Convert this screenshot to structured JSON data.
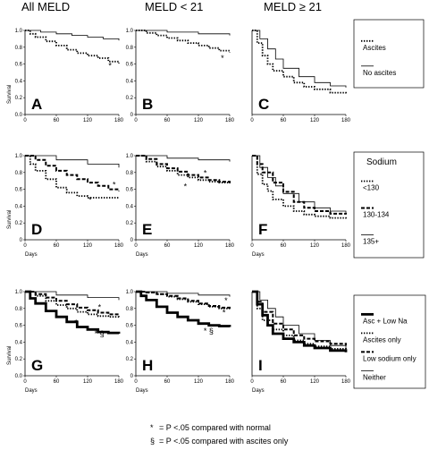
{
  "column_headers": [
    "All MELD",
    "MELD < 21",
    "MELD ≥ 21"
  ],
  "footnotes": [
    {
      "symbol": "*",
      "text": "= P <.05 compared with normal"
    },
    {
      "symbol": "§",
      "text": "= P <.05 compared with ascites only"
    }
  ],
  "legends": [
    {
      "title": "",
      "entries": [
        {
          "label": "Ascites",
          "style": "dotted"
        },
        {
          "label": "No ascites",
          "style": "thin"
        }
      ]
    },
    {
      "title": "Sodium",
      "entries": [
        {
          "label": "<130",
          "style": "dotted"
        },
        {
          "label": "130-134",
          "style": "dashed"
        },
        {
          "label": "135+",
          "style": "thin"
        }
      ]
    },
    {
      "title": "",
      "entries": [
        {
          "label": "Asc + Low Na",
          "style": "thick"
        },
        {
          "label": "Ascites only",
          "style": "dotted"
        },
        {
          "label": "Low sodium only",
          "style": "dashed"
        },
        {
          "label": "Neither",
          "style": "thin"
        }
      ]
    }
  ],
  "chart_data": [
    {
      "panel": "A",
      "type": "line",
      "xlabel": "",
      "ylabel": "Survival",
      "xlim": [
        0,
        180
      ],
      "ylim": [
        0,
        1
      ],
      "xticks": [
        0,
        60,
        120,
        180
      ],
      "yticks": [
        "0.0",
        "0.2",
        "0.4",
        "0.6",
        "0.8",
        "1.0"
      ],
      "annotations": [
        {
          "text": "*",
          "x": 160,
          "y": 0.55
        }
      ],
      "series": [
        {
          "name": "Ascites",
          "style": "dotted",
          "x": [
            0,
            10,
            20,
            40,
            60,
            80,
            100,
            120,
            140,
            160,
            180
          ],
          "y": [
            1.0,
            0.96,
            0.92,
            0.87,
            0.82,
            0.77,
            0.73,
            0.7,
            0.67,
            0.63,
            0.61
          ]
        },
        {
          "name": "No ascites",
          "style": "thin",
          "x": [
            0,
            30,
            60,
            90,
            120,
            150,
            180
          ],
          "y": [
            1.0,
            0.98,
            0.96,
            0.94,
            0.92,
            0.9,
            0.88
          ]
        }
      ]
    },
    {
      "panel": "B",
      "type": "line",
      "xlabel": "",
      "ylabel": "",
      "xlim": [
        0,
        180
      ],
      "ylim": [
        0,
        1
      ],
      "xticks": [
        0,
        60,
        120,
        180
      ],
      "yticks": [
        "0",
        "0.2",
        "0.4",
        "0.6",
        "0.8",
        "1.0"
      ],
      "annotations": [
        {
          "text": "*",
          "x": 163,
          "y": 0.64
        }
      ],
      "series": [
        {
          "name": "Ascites",
          "style": "dotted",
          "x": [
            0,
            20,
            40,
            60,
            80,
            100,
            120,
            140,
            160,
            180
          ],
          "y": [
            1.0,
            0.97,
            0.94,
            0.91,
            0.88,
            0.85,
            0.82,
            0.79,
            0.76,
            0.74
          ]
        },
        {
          "name": "No ascites",
          "style": "thin",
          "x": [
            0,
            60,
            120,
            180
          ],
          "y": [
            1.0,
            0.98,
            0.96,
            0.94
          ]
        }
      ]
    },
    {
      "panel": "C",
      "type": "line",
      "xlabel": "",
      "ylabel": "",
      "xlim": [
        0,
        180
      ],
      "ylim": [
        0,
        1
      ],
      "xticks": [
        0,
        60,
        120,
        180
      ],
      "yticks": [],
      "annotations": [],
      "series": [
        {
          "name": "Ascites",
          "style": "dotted",
          "x": [
            0,
            10,
            20,
            30,
            40,
            60,
            80,
            100,
            120,
            150,
            180
          ],
          "y": [
            1.0,
            0.85,
            0.7,
            0.6,
            0.52,
            0.45,
            0.38,
            0.33,
            0.3,
            0.26,
            0.25
          ]
        },
        {
          "name": "No ascites",
          "style": "thin",
          "x": [
            0,
            15,
            30,
            45,
            60,
            90,
            120,
            150,
            180
          ],
          "y": [
            1.0,
            0.9,
            0.78,
            0.66,
            0.55,
            0.45,
            0.38,
            0.34,
            0.32
          ]
        }
      ]
    },
    {
      "panel": "D",
      "type": "line",
      "xlabel": "Days",
      "ylabel": "Survival",
      "xlim": [
        0,
        180
      ],
      "ylim": [
        0,
        1
      ],
      "xticks": [
        0,
        60,
        120,
        180
      ],
      "yticks": [
        "0",
        "0.2",
        "0.4",
        "0.6",
        "0.8",
        "1.0"
      ],
      "annotations": [
        {
          "text": "*",
          "x": 168,
          "y": 0.62
        },
        {
          "text": "*",
          "x": 122,
          "y": 0.44
        }
      ],
      "series": [
        {
          "name": "<130",
          "style": "dotted",
          "x": [
            0,
            10,
            20,
            40,
            60,
            80,
            100,
            120,
            180
          ],
          "y": [
            1.0,
            0.9,
            0.82,
            0.72,
            0.62,
            0.56,
            0.52,
            0.5,
            0.5
          ]
        },
        {
          "name": "130-134",
          "style": "dashed",
          "x": [
            0,
            20,
            40,
            60,
            80,
            100,
            120,
            140,
            160,
            180
          ],
          "y": [
            1.0,
            0.95,
            0.88,
            0.82,
            0.77,
            0.72,
            0.68,
            0.64,
            0.6,
            0.58
          ]
        },
        {
          "name": "135+",
          "style": "thin",
          "x": [
            0,
            60,
            120,
            180
          ],
          "y": [
            1.0,
            0.95,
            0.9,
            0.86
          ]
        }
      ]
    },
    {
      "panel": "E",
      "type": "line",
      "xlabel": "Days",
      "ylabel": "",
      "xlim": [
        0,
        180
      ],
      "ylim": [
        0,
        1
      ],
      "xticks": [
        0,
        60,
        120,
        180
      ],
      "yticks": [
        "0",
        "0.2",
        "0.4",
        "0.6",
        "0.8",
        "1.0"
      ],
      "annotations": [
        {
          "text": "*",
          "x": 130,
          "y": 0.76
        },
        {
          "text": "*",
          "x": 92,
          "y": 0.6
        }
      ],
      "series": [
        {
          "name": "<130",
          "style": "dotted",
          "x": [
            0,
            20,
            40,
            60,
            80,
            100,
            120,
            140,
            160,
            180
          ],
          "y": [
            1.0,
            0.93,
            0.87,
            0.82,
            0.77,
            0.74,
            0.71,
            0.69,
            0.68,
            0.67
          ]
        },
        {
          "name": "130-134",
          "style": "dashed",
          "x": [
            0,
            20,
            40,
            60,
            80,
            100,
            120,
            140,
            160,
            180
          ],
          "y": [
            1.0,
            0.96,
            0.9,
            0.85,
            0.81,
            0.77,
            0.74,
            0.71,
            0.69,
            0.68
          ]
        },
        {
          "name": "135+",
          "style": "thin",
          "x": [
            0,
            60,
            120,
            180
          ],
          "y": [
            1.0,
            0.97,
            0.95,
            0.93
          ]
        }
      ]
    },
    {
      "panel": "F",
      "type": "line",
      "xlabel": "Days",
      "ylabel": "",
      "xlim": [
        0,
        180
      ],
      "ylim": [
        0,
        1
      ],
      "xticks": [
        0,
        60,
        120,
        180
      ],
      "yticks": [],
      "annotations": [],
      "series": [
        {
          "name": "<130",
          "style": "dotted",
          "x": [
            0,
            10,
            20,
            30,
            40,
            60,
            80,
            100,
            120,
            150,
            180
          ],
          "y": [
            1.0,
            0.78,
            0.66,
            0.58,
            0.48,
            0.4,
            0.34,
            0.3,
            0.28,
            0.26,
            0.25
          ]
        },
        {
          "name": "130-134",
          "style": "dashed",
          "x": [
            0,
            10,
            20,
            40,
            60,
            80,
            100,
            120,
            150,
            180
          ],
          "y": [
            1.0,
            0.9,
            0.8,
            0.68,
            0.57,
            0.45,
            0.38,
            0.34,
            0.31,
            0.3
          ]
        },
        {
          "name": "135+",
          "style": "thin",
          "x": [
            0,
            15,
            30,
            45,
            60,
            90,
            120,
            150,
            180
          ],
          "y": [
            1.0,
            0.86,
            0.74,
            0.64,
            0.55,
            0.45,
            0.38,
            0.34,
            0.32
          ]
        }
      ]
    },
    {
      "panel": "G",
      "type": "line",
      "xlabel": "Days",
      "ylabel": "Survival",
      "xlim": [
        0,
        180
      ],
      "ylim": [
        0,
        1
      ],
      "xticks": [
        0,
        60,
        120,
        180
      ],
      "yticks": [
        "0.0",
        "0.2",
        "0.4",
        "0.6",
        "0.8",
        "1.0"
      ],
      "annotations": [
        {
          "text": "*",
          "x": 140,
          "y": 0.78
        },
        {
          "text": "*",
          "x": 95,
          "y": 0.6
        },
        {
          "text": "* §",
          "x": 133,
          "y": 0.47
        }
      ],
      "series": [
        {
          "name": "Asc + Low Na",
          "style": "thick",
          "x": [
            0,
            10,
            20,
            40,
            60,
            80,
            100,
            120,
            140,
            160,
            180
          ],
          "y": [
            1.0,
            0.92,
            0.86,
            0.77,
            0.7,
            0.64,
            0.58,
            0.55,
            0.52,
            0.51,
            0.5
          ]
        },
        {
          "name": "Ascites only",
          "style": "dotted",
          "x": [
            0,
            20,
            40,
            60,
            80,
            100,
            120,
            140,
            160,
            180
          ],
          "y": [
            1.0,
            0.95,
            0.89,
            0.84,
            0.8,
            0.76,
            0.73,
            0.71,
            0.7,
            0.69
          ]
        },
        {
          "name": "Low sodium only",
          "style": "dashed",
          "x": [
            0,
            20,
            40,
            60,
            80,
            100,
            120,
            140,
            160,
            180
          ],
          "y": [
            1.0,
            0.97,
            0.93,
            0.89,
            0.85,
            0.81,
            0.78,
            0.75,
            0.73,
            0.72
          ]
        },
        {
          "name": "Neither",
          "style": "thin",
          "x": [
            0,
            60,
            120,
            180
          ],
          "y": [
            1.0,
            0.96,
            0.93,
            0.9
          ]
        }
      ]
    },
    {
      "panel": "H",
      "type": "line",
      "xlabel": "Days",
      "ylabel": "",
      "xlim": [
        0,
        180
      ],
      "ylim": [
        0,
        1
      ],
      "xticks": [
        0,
        60,
        120,
        180
      ],
      "yticks": [
        "0",
        "0.2",
        "0.4",
        "0.6",
        "0.8",
        "1.0"
      ],
      "annotations": [
        {
          "text": "*",
          "x": 170,
          "y": 0.86
        },
        {
          "text": "*",
          "x": 166,
          "y": 0.72
        },
        {
          "text": "* §",
          "x": 130,
          "y": 0.5
        }
      ],
      "series": [
        {
          "name": "Asc + Low Na",
          "style": "thick",
          "x": [
            0,
            10,
            20,
            40,
            60,
            80,
            100,
            120,
            140,
            160,
            180
          ],
          "y": [
            1.0,
            0.95,
            0.9,
            0.82,
            0.75,
            0.7,
            0.66,
            0.62,
            0.6,
            0.59,
            0.58
          ]
        },
        {
          "name": "Ascites only",
          "style": "dotted",
          "x": [
            0,
            20,
            40,
            60,
            80,
            100,
            120,
            140,
            160,
            180
          ],
          "y": [
            1.0,
            0.99,
            0.97,
            0.94,
            0.91,
            0.88,
            0.85,
            0.82,
            0.8,
            0.79
          ]
        },
        {
          "name": "Low sodium only",
          "style": "dashed",
          "x": [
            0,
            20,
            40,
            60,
            80,
            100,
            120,
            140,
            160,
            180
          ],
          "y": [
            1.0,
            0.99,
            0.97,
            0.95,
            0.92,
            0.89,
            0.86,
            0.83,
            0.81,
            0.8
          ]
        },
        {
          "name": "Neither",
          "style": "thin",
          "x": [
            0,
            60,
            120,
            180
          ],
          "y": [
            1.0,
            0.98,
            0.96,
            0.94
          ]
        }
      ]
    },
    {
      "panel": "I",
      "type": "line",
      "xlabel": "Days",
      "ylabel": "",
      "xlim": [
        0,
        180
      ],
      "ylim": [
        0,
        1
      ],
      "xticks": [
        0,
        60,
        120,
        180
      ],
      "yticks": [],
      "annotations": [],
      "series": [
        {
          "name": "Asc + Low Na",
          "style": "thick",
          "x": [
            0,
            10,
            20,
            30,
            40,
            60,
            80,
            100,
            120,
            150,
            180
          ],
          "y": [
            1.0,
            0.85,
            0.72,
            0.6,
            0.5,
            0.44,
            0.4,
            0.36,
            0.33,
            0.3,
            0.28
          ]
        },
        {
          "name": "Ascites only",
          "style": "dotted",
          "x": [
            0,
            10,
            20,
            40,
            60,
            80,
            100,
            120,
            150,
            180
          ],
          "y": [
            1.0,
            0.8,
            0.66,
            0.55,
            0.48,
            0.42,
            0.38,
            0.35,
            0.32,
            0.3
          ]
        },
        {
          "name": "Low sodium only",
          "style": "dashed",
          "x": [
            0,
            10,
            20,
            40,
            60,
            80,
            100,
            120,
            150,
            180
          ],
          "y": [
            1.0,
            0.88,
            0.76,
            0.62,
            0.55,
            0.48,
            0.44,
            0.41,
            0.38,
            0.36
          ]
        },
        {
          "name": "Neither",
          "style": "thin",
          "x": [
            0,
            15,
            30,
            45,
            60,
            90,
            120,
            150,
            180
          ],
          "y": [
            1.0,
            0.9,
            0.8,
            0.7,
            0.6,
            0.5,
            0.42,
            0.36,
            0.33
          ]
        }
      ]
    }
  ]
}
